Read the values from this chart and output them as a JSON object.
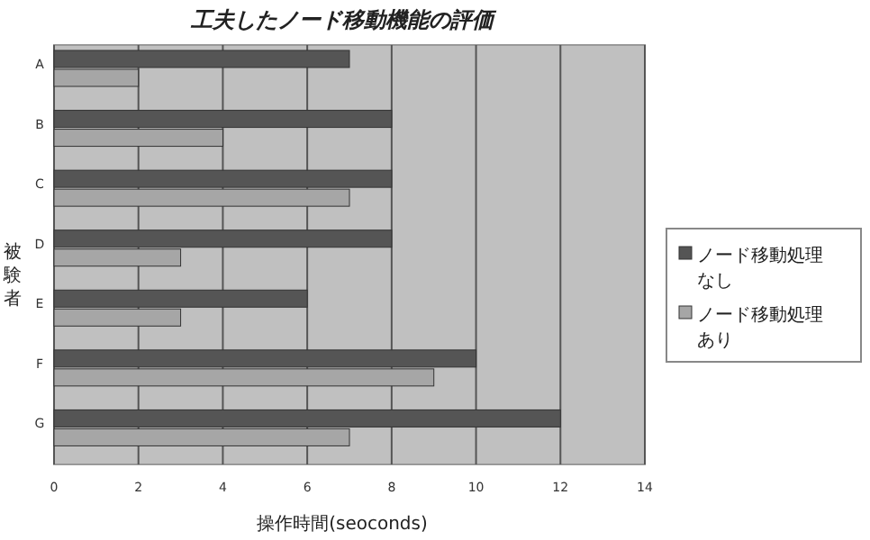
{
  "chart_data": {
    "type": "bar",
    "orientation": "horizontal",
    "title": "工夫したノード移動機能の評価",
    "xlabel": "操作時間(seoconds)",
    "ylabel": "被験者",
    "categories": [
      "A",
      "B",
      "C",
      "D",
      "E",
      "F",
      "G"
    ],
    "series": [
      {
        "name": "ノード移動処理なし",
        "color": "#555555",
        "values": [
          7,
          8,
          8,
          8,
          6,
          10,
          12
        ]
      },
      {
        "name": "ノード移動処理あり",
        "color": "#a6a6a6",
        "values": [
          2,
          4,
          7,
          3,
          3,
          9,
          7
        ]
      }
    ],
    "xlim": [
      0,
      14
    ],
    "xticks": [
      0,
      2,
      4,
      6,
      8,
      10,
      12,
      14
    ],
    "grid": "x",
    "legend": "right"
  }
}
